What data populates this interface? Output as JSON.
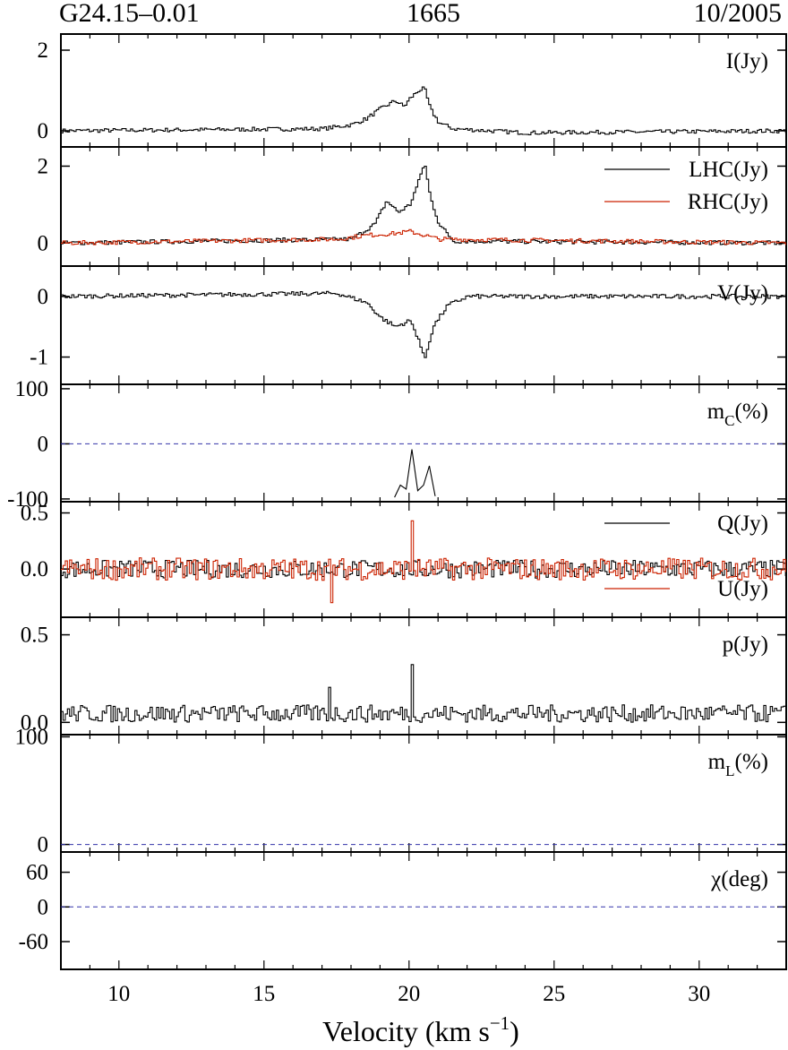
{
  "header": {
    "left": "G24.15–0.01",
    "center": "1665",
    "right": "10/2005"
  },
  "colors": {
    "lhc": "#000000",
    "rhc": "#cc2200",
    "zero_line": "#3333aa",
    "frame": "#000000"
  },
  "x_axis": {
    "label": "Velocity (km s",
    "label_sup": "−1",
    "label_end": ")",
    "range": [
      8,
      33
    ],
    "ticks": [
      10,
      15,
      20,
      25,
      30
    ],
    "tick_labels": [
      "10",
      "15",
      "20",
      "25",
      "30"
    ]
  },
  "chart_data": [
    {
      "type": "line",
      "name": "I",
      "label": "I(Jy)",
      "ylim": [
        -0.4,
        2.4
      ],
      "yticks": [
        0,
        2
      ],
      "ytick_labels": [
        "0",
        "2"
      ],
      "series": [
        {
          "name": "I",
          "color": "#000000",
          "points": [
            [
              8,
              0.0
            ],
            [
              17,
              0.05
            ],
            [
              18,
              0.15
            ],
            [
              18.5,
              0.3
            ],
            [
              19.0,
              0.55
            ],
            [
              19.5,
              0.75
            ],
            [
              19.8,
              0.6
            ],
            [
              20.0,
              0.8
            ],
            [
              20.3,
              1.0
            ],
            [
              20.5,
              1.05
            ],
            [
              20.7,
              0.55
            ],
            [
              21.0,
              0.2
            ],
            [
              21.5,
              0.05
            ],
            [
              24,
              -0.05
            ],
            [
              33,
              0.0
            ]
          ]
        }
      ]
    },
    {
      "type": "line",
      "name": "LHC-RHC",
      "label": "",
      "ylim": [
        -0.6,
        2.5
      ],
      "yticks": [
        0,
        2
      ],
      "ytick_labels": [
        "0",
        "2"
      ],
      "legend": [
        {
          "name": "LHC(Jy)",
          "color": "#000000"
        },
        {
          "name": "RHC(Jy)",
          "color": "#cc2200"
        }
      ],
      "series": [
        {
          "name": "LHC",
          "color": "#000000",
          "points": [
            [
              8,
              0.0
            ],
            [
              18,
              0.1
            ],
            [
              18.8,
              0.5
            ],
            [
              19.2,
              1.1
            ],
            [
              19.6,
              0.8
            ],
            [
              20.0,
              1.0
            ],
            [
              20.3,
              1.6
            ],
            [
              20.5,
              2.1
            ],
            [
              20.7,
              1.2
            ],
            [
              21.0,
              0.5
            ],
            [
              21.5,
              0.05
            ],
            [
              33,
              0.0
            ]
          ]
        },
        {
          "name": "RHC",
          "color": "#cc2200",
          "points": [
            [
              8,
              0.0
            ],
            [
              17.5,
              0.1
            ],
            [
              18.5,
              0.2
            ],
            [
              19.5,
              0.25
            ],
            [
              20.0,
              0.3
            ],
            [
              20.5,
              0.2
            ],
            [
              21.0,
              0.1
            ],
            [
              33,
              0.0
            ]
          ]
        }
      ]
    },
    {
      "type": "line",
      "name": "V",
      "label": "V(Jy)",
      "ylim": [
        -1.45,
        0.5
      ],
      "yticks": [
        0,
        -1
      ],
      "ytick_labels": [
        "0",
        "-1"
      ],
      "series": [
        {
          "name": "V",
          "color": "#000000",
          "points": [
            [
              8,
              0.0
            ],
            [
              17.5,
              0.05
            ],
            [
              18.5,
              -0.1
            ],
            [
              19.0,
              -0.35
            ],
            [
              19.5,
              -0.5
            ],
            [
              20.0,
              -0.4
            ],
            [
              20.3,
              -0.7
            ],
            [
              20.5,
              -1.05
            ],
            [
              20.8,
              -0.5
            ],
            [
              21.3,
              -0.15
            ],
            [
              22,
              0.0
            ],
            [
              33,
              0.0
            ]
          ]
        }
      ]
    },
    {
      "type": "line",
      "name": "mC",
      "label": "m",
      "label_sub": "C",
      "label_end": "(%)",
      "ylim": [
        -105,
        108
      ],
      "yticks": [
        100,
        0,
        -100
      ],
      "ytick_labels": [
        "100",
        "0",
        "-100"
      ],
      "zero_line": true,
      "series": [
        {
          "name": "mC",
          "color": "#000000",
          "points": [
            [
              19.5,
              -97
            ],
            [
              19.7,
              -75
            ],
            [
              19.9,
              -82
            ],
            [
              20.1,
              -10
            ],
            [
              20.3,
              -85
            ],
            [
              20.5,
              -75
            ],
            [
              20.7,
              -40
            ],
            [
              20.9,
              -95
            ]
          ]
        }
      ]
    },
    {
      "type": "line",
      "name": "QU",
      "label": "",
      "ylim": [
        -0.43,
        0.6
      ],
      "yticks": [
        0.5,
        0.0
      ],
      "ytick_labels": [
        "0.5",
        "0.0"
      ],
      "legend": [
        {
          "name": "Q(Jy)",
          "color": "#000000"
        },
        {
          "name": "U(Jy)",
          "color": "#cc2200"
        }
      ],
      "series": [
        {
          "name": "Q",
          "color": "#000000",
          "noise": 0.08,
          "points": [
            [
              8,
              0.0
            ],
            [
              33,
              0.0
            ]
          ]
        },
        {
          "name": "U",
          "color": "#cc2200",
          "noise": 0.1,
          "points": [
            [
              8,
              0.0
            ],
            [
              20.1,
              0.0
            ],
            [
              33,
              0.0
            ]
          ],
          "spikes": [
            [
              20.1,
              0.43
            ],
            [
              17.3,
              -0.3
            ]
          ]
        }
      ]
    },
    {
      "type": "line",
      "name": "p",
      "label": "p(Jy)",
      "ylim": [
        -0.07,
        0.6
      ],
      "yticks": [
        0.5,
        0.0
      ],
      "ytick_labels": [
        "0.5",
        "0.0"
      ],
      "series": [
        {
          "name": "p",
          "color": "#000000",
          "noise": 0.05,
          "points": [
            [
              8,
              0.05
            ],
            [
              33,
              0.05
            ]
          ],
          "spikes": [
            [
              20.1,
              0.33
            ],
            [
              17.2,
              0.2
            ]
          ]
        }
      ]
    },
    {
      "type": "line",
      "name": "mL",
      "label": "m",
      "label_sub": "L",
      "label_end": "(%)",
      "ylim": [
        -7,
        102
      ],
      "yticks": [
        100,
        0
      ],
      "ytick_labels": [
        "100",
        "0"
      ],
      "zero_line": true,
      "series": []
    },
    {
      "type": "line",
      "name": "chi",
      "label": "χ(deg)",
      "ylim": [
        -108,
        95
      ],
      "yticks": [
        60,
        0,
        -60
      ],
      "ytick_labels": [
        "60",
        "0",
        "-60"
      ],
      "zero_line": true,
      "series": []
    }
  ]
}
